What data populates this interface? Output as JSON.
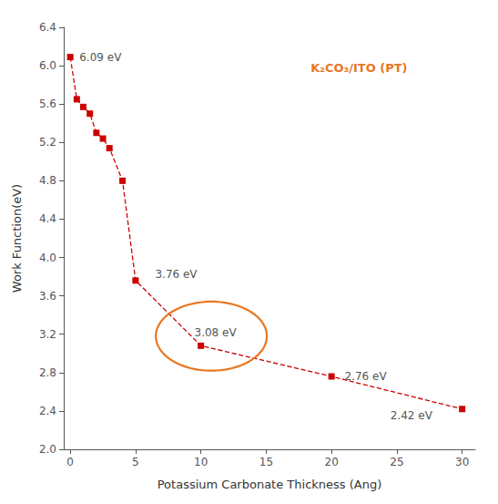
{
  "chart_data": {
    "type": "line",
    "x": [
      0,
      0.5,
      1.0,
      1.5,
      2.0,
      2.5,
      3.0,
      4.0,
      5.0,
      10.0,
      20.0,
      30.0
    ],
    "values": [
      6.09,
      5.65,
      5.57,
      5.5,
      5.3,
      5.24,
      5.14,
      4.8,
      3.76,
      3.08,
      2.76,
      2.42
    ],
    "color": "#CC0000",
    "marker": "square",
    "line_style": "dashed",
    "xlabel": "Potassium Carbonate Thickness (Ang)",
    "ylabel": "Work Function(eV)",
    "xlim": [
      -0.5,
      31
    ],
    "ylim": [
      2.0,
      6.4
    ],
    "xticks": [
      0,
      5,
      10,
      15,
      20,
      25,
      30
    ],
    "yticks": [
      {
        "value": 2.0,
        "label": "2.0"
      },
      2.4,
      2.8,
      3.2,
      3.6,
      {
        "value": 4.0,
        "label": "4.0"
      },
      4.4,
      4.8,
      5.2,
      5.6,
      {
        "value": 6.0,
        "label": "6.0"
      },
      6.4
    ],
    "annotations": [
      {
        "text": "K₂CO₃/ITO (PT)",
        "color": "#E87722"
      },
      {
        "text": "6.09 eV",
        "x": 0.7,
        "y": 6.09,
        "color": "#555555"
      },
      {
        "text": "3.76 eV",
        "x": 6.5,
        "y": 3.82,
        "color": "#555555"
      },
      {
        "text": "3.08 eV",
        "x": 9.5,
        "y": 3.22,
        "color": "#555555"
      },
      {
        "text": "2.76 eV",
        "x": 21.0,
        "y": 2.76,
        "color": "#555555"
      },
      {
        "text": "2.42 eV",
        "x": 24.5,
        "y": 2.35,
        "color": "#555555"
      }
    ],
    "ellipse": {
      "x": 10.8,
      "y": 3.18,
      "width": 8.5,
      "height": 0.72,
      "color": "#E87722"
    },
    "grid": false
  }
}
